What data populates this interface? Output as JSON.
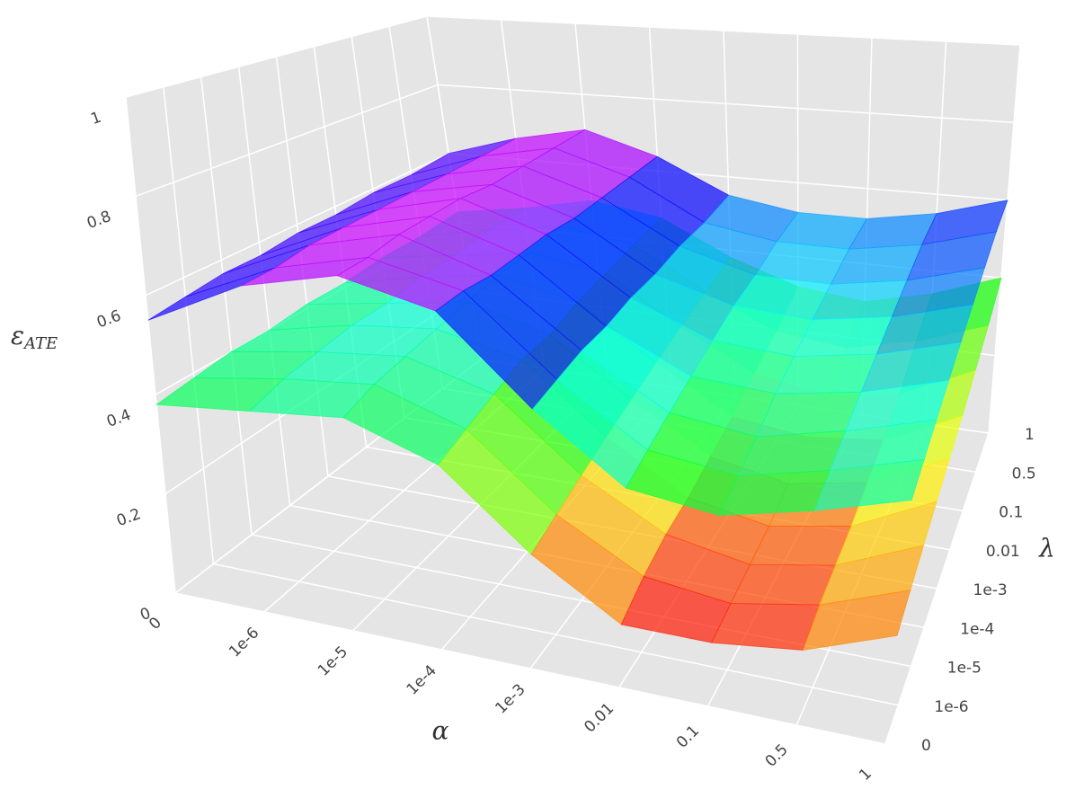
{
  "chart_data": {
    "type": "surface3d",
    "xlabel": "α",
    "ylabel": "λ",
    "zlabel": {
      "symbol": "ε",
      "subscript": "ATE"
    },
    "x": [
      "0",
      "1e-6",
      "1e-5",
      "1e-4",
      "1e-3",
      "0.01",
      "0.1",
      "0.5",
      "1"
    ],
    "y": [
      "0",
      "1e-6",
      "1e-5",
      "1e-4",
      "1e-3",
      "0.01",
      "0.1",
      "0.5",
      "1"
    ],
    "zlim": [
      0,
      1
    ],
    "zticks": [
      0,
      0.2,
      0.4,
      0.6,
      0.8,
      1
    ],
    "colormap": "hsv",
    "opacity": 0.72,
    "surfaces": [
      {
        "z": [
          [
            0.55,
            0.65,
            0.7,
            0.66,
            0.5,
            0.38,
            0.36,
            0.4,
            0.45
          ],
          [
            0.56,
            0.65,
            0.7,
            0.66,
            0.51,
            0.4,
            0.38,
            0.42,
            0.47
          ],
          [
            0.57,
            0.66,
            0.71,
            0.65,
            0.52,
            0.42,
            0.4,
            0.44,
            0.49
          ],
          [
            0.57,
            0.66,
            0.71,
            0.65,
            0.52,
            0.44,
            0.43,
            0.46,
            0.51
          ],
          [
            0.58,
            0.66,
            0.71,
            0.65,
            0.53,
            0.46,
            0.45,
            0.48,
            0.53
          ],
          [
            0.58,
            0.66,
            0.7,
            0.64,
            0.53,
            0.48,
            0.47,
            0.5,
            0.55
          ],
          [
            0.59,
            0.66,
            0.7,
            0.64,
            0.54,
            0.49,
            0.49,
            0.52,
            0.57
          ],
          [
            0.59,
            0.66,
            0.7,
            0.64,
            0.54,
            0.51,
            0.51,
            0.54,
            0.59
          ],
          [
            0.6,
            0.66,
            0.7,
            0.64,
            0.55,
            0.52,
            0.52,
            0.55,
            0.6
          ]
        ]
      },
      {
        "z": [
          [
            0.38,
            0.4,
            0.42,
            0.36,
            0.22,
            0.12,
            0.12,
            0.14,
            0.2
          ],
          [
            0.39,
            0.42,
            0.44,
            0.38,
            0.24,
            0.15,
            0.13,
            0.16,
            0.22
          ],
          [
            0.4,
            0.43,
            0.45,
            0.4,
            0.26,
            0.17,
            0.14,
            0.17,
            0.24
          ],
          [
            0.4,
            0.44,
            0.46,
            0.42,
            0.28,
            0.18,
            0.15,
            0.18,
            0.26
          ],
          [
            0.41,
            0.44,
            0.47,
            0.42,
            0.3,
            0.2,
            0.17,
            0.2,
            0.28
          ],
          [
            0.41,
            0.45,
            0.48,
            0.44,
            0.32,
            0.22,
            0.2,
            0.22,
            0.3
          ],
          [
            0.42,
            0.45,
            0.48,
            0.45,
            0.34,
            0.25,
            0.22,
            0.25,
            0.33
          ],
          [
            0.42,
            0.46,
            0.49,
            0.46,
            0.36,
            0.28,
            0.26,
            0.3,
            0.36
          ],
          [
            0.43,
            0.46,
            0.5,
            0.47,
            0.38,
            0.32,
            0.3,
            0.34,
            0.4
          ]
        ]
      }
    ]
  }
}
